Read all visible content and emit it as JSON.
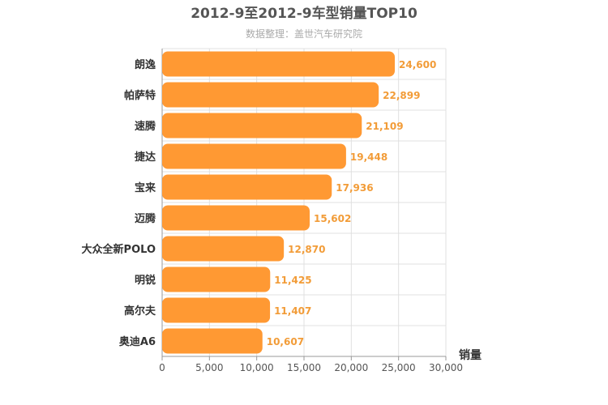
{
  "chart_data": {
    "type": "bar",
    "orientation": "horizontal",
    "title": "2012-9至2012-9车型销量TOP10",
    "subtitle": "数据整理：盖世汽车研究院",
    "xlabel": "销量",
    "ylabel": "",
    "categories": [
      "朗逸",
      "帕萨特",
      "速腾",
      "捷达",
      "宝来",
      "迈腾",
      "大众全新POLO",
      "明锐",
      "高尔夫",
      "奥迪A6"
    ],
    "values": [
      24600,
      22899,
      21109,
      19448,
      17936,
      15602,
      12870,
      11425,
      11407,
      10607
    ],
    "value_labels": [
      "24,600",
      "22,899",
      "21,109",
      "19,448",
      "17,936",
      "15,602",
      "12,870",
      "11,425",
      "11,407",
      "10,607"
    ],
    "xlim": [
      0,
      30000
    ],
    "ticks": [
      "0",
      "5,000",
      "10,000",
      "15,000",
      "20,000",
      "25,000",
      "30,000"
    ],
    "tick_values": [
      0,
      5000,
      10000,
      15000,
      20000,
      25000,
      30000
    ],
    "grid": true,
    "bar_color": "#ff9933",
    "label_color": "#f29c38"
  }
}
